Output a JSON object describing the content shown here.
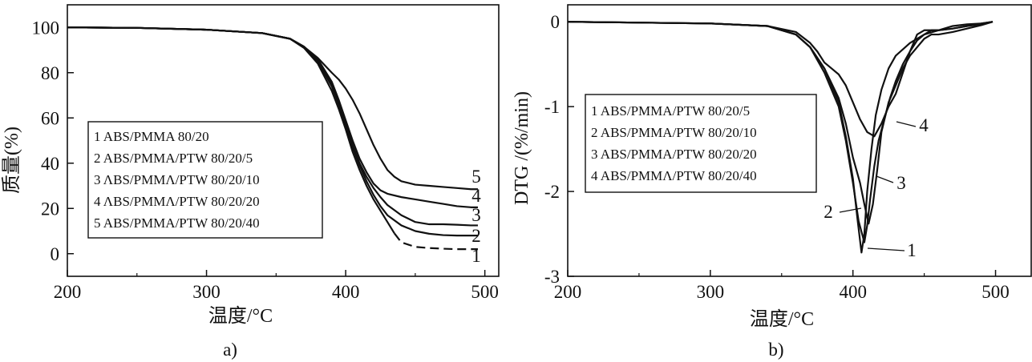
{
  "chart_data": [
    {
      "id": "a",
      "type": "line",
      "panel_label": "a)",
      "xlabel": "温度/°C",
      "ylabel": "质量(%)",
      "xlim": [
        200,
        510
      ],
      "ylim": [
        -10,
        110
      ],
      "x_ticks": [
        200,
        300,
        400,
        500
      ],
      "y_ticks": [
        0,
        20,
        40,
        60,
        80,
        100
      ],
      "x_tick_labels": [
        "200",
        "300",
        "400",
        "500"
      ],
      "y_tick_labels": [
        "0",
        "20",
        "40",
        "60",
        "80",
        "100"
      ],
      "legend": [
        "1 ABS/PMMA 80/20",
        "2 ABS/PMMA/PTW 80/20/5",
        "3 ΛBS/PMMΛ/PTW 80/20/10",
        "4 ΛBS/PMMΛ/PTW 80/20/20",
        "5 ABS/PMMA/PTW 80/20/40"
      ],
      "series": [
        {
          "name": "1",
          "label": "1",
          "dashed_from": 435,
          "x": [
            200,
            250,
            300,
            340,
            360,
            370,
            380,
            390,
            395,
            400,
            405,
            410,
            415,
            420,
            425,
            430,
            435,
            440,
            450,
            460,
            470,
            480,
            490,
            495
          ],
          "y": [
            100,
            99.8,
            99,
            97.5,
            95,
            91,
            84,
            72,
            64,
            55,
            45,
            37,
            30,
            24,
            19,
            14,
            9,
            5,
            3,
            2.5,
            2.2,
            2,
            2,
            2
          ]
        },
        {
          "name": "2",
          "label": "2",
          "x": [
            200,
            250,
            300,
            340,
            360,
            370,
            380,
            390,
            395,
            400,
            405,
            410,
            415,
            420,
            425,
            430,
            440,
            450,
            460,
            470,
            480,
            490,
            495
          ],
          "y": [
            100,
            99.8,
            99,
            97.5,
            95,
            91,
            85,
            74,
            66,
            57,
            47,
            39,
            32,
            26,
            21,
            17,
            12.5,
            10,
            8.8,
            8.2,
            8,
            8,
            8
          ]
        },
        {
          "name": "3",
          "label": "3",
          "x": [
            200,
            250,
            300,
            340,
            360,
            370,
            380,
            390,
            395,
            400,
            405,
            410,
            415,
            420,
            425,
            430,
            440,
            450,
            460,
            470,
            480,
            490,
            495
          ],
          "y": [
            100,
            99.8,
            99,
            97.5,
            95,
            91.5,
            85.5,
            75,
            67,
            58,
            48,
            40,
            34,
            29,
            25,
            21.5,
            17,
            14,
            13,
            13,
            12.8,
            12.5,
            12.5
          ]
        },
        {
          "name": "4",
          "label": "4",
          "x": [
            200,
            250,
            300,
            340,
            360,
            370,
            380,
            390,
            395,
            400,
            405,
            410,
            415,
            420,
            425,
            430,
            440,
            450,
            460,
            470,
            480,
            490,
            495
          ],
          "y": [
            100,
            99.8,
            99,
            97.5,
            95,
            91.5,
            86,
            76,
            68,
            59,
            50,
            42,
            36,
            31,
            28,
            26.5,
            25,
            24,
            23,
            22,
            21,
            20.5,
            20.5
          ]
        },
        {
          "name": "5",
          "label": "5",
          "x": [
            200,
            250,
            300,
            340,
            360,
            370,
            380,
            390,
            395,
            400,
            405,
            410,
            415,
            420,
            425,
            430,
            435,
            440,
            450,
            460,
            470,
            480,
            490,
            495
          ],
          "y": [
            100,
            99.8,
            99,
            97.5,
            95,
            91.5,
            86.5,
            80,
            77,
            73,
            68,
            62,
            55,
            48,
            42,
            37,
            34,
            32,
            30.5,
            30,
            29.5,
            29,
            28.5,
            28.5
          ]
        }
      ]
    },
    {
      "id": "b",
      "type": "line",
      "panel_label": "b)",
      "xlabel": "温度/°C",
      "ylabel": "DTG /(%/min)",
      "xlim": [
        200,
        525
      ],
      "ylim": [
        -3,
        0.2
      ],
      "x_ticks": [
        200,
        300,
        400,
        500
      ],
      "y_ticks": [
        0,
        -1,
        -2,
        -3
      ],
      "x_tick_labels": [
        "200",
        "300",
        "400",
        "500"
      ],
      "y_tick_labels": [
        "0",
        "-1",
        "-2",
        "-3"
      ],
      "legend": [
        "1 ABS/PMMA/PTW 80/20/5",
        "2 ABS/PMMA/PTW 80/20/10",
        "3 ABS/PMMA/PTW 80/20/20",
        "4 ABS/PMMΛ/PTW 80/20/40"
      ],
      "curve_labels": [
        "1",
        "2",
        "3",
        "4"
      ],
      "series": [
        {
          "name": "1",
          "x": [
            200,
            300,
            340,
            360,
            370,
            380,
            390,
            395,
            400,
            403,
            406,
            408,
            410,
            413,
            416,
            420,
            425,
            430,
            440,
            450,
            460,
            470,
            480,
            490,
            498
          ],
          "y": [
            0,
            -0.02,
            -0.05,
            -0.15,
            -0.3,
            -0.55,
            -0.95,
            -1.35,
            -1.85,
            -2.3,
            -2.72,
            -2.5,
            -2.0,
            -1.5,
            -1.1,
            -0.8,
            -0.55,
            -0.4,
            -0.25,
            -0.15,
            -0.1,
            -0.05,
            -0.03,
            -0.02,
            0
          ]
        },
        {
          "name": "2",
          "x": [
            200,
            300,
            340,
            360,
            370,
            380,
            390,
            395,
            400,
            404,
            408,
            410,
            412,
            415,
            418,
            422,
            426,
            430,
            435,
            440,
            445,
            450,
            455,
            460,
            470,
            480,
            490,
            498
          ],
          "y": [
            0,
            -0.02,
            -0.05,
            -0.15,
            -0.3,
            -0.6,
            -1.0,
            -1.4,
            -1.9,
            -2.35,
            -2.6,
            -2.4,
            -2.1,
            -1.7,
            -1.4,
            -1.15,
            -0.9,
            -0.7,
            -0.5,
            -0.35,
            -0.22,
            -0.15,
            -0.1,
            -0.1,
            -0.08,
            -0.05,
            -0.03,
            0
          ]
        },
        {
          "name": "3",
          "x": [
            200,
            300,
            340,
            360,
            370,
            380,
            390,
            395,
            400,
            405,
            408,
            411,
            414,
            417,
            420,
            425,
            430,
            435,
            440,
            445,
            450,
            455,
            460,
            470,
            480,
            490,
            498
          ],
          "y": [
            0,
            -0.02,
            -0.05,
            -0.15,
            -0.3,
            -0.55,
            -0.9,
            -1.2,
            -1.6,
            -1.9,
            -2.15,
            -2.38,
            -2.15,
            -1.75,
            -1.3,
            -0.95,
            -0.75,
            -0.55,
            -0.4,
            -0.3,
            -0.2,
            -0.15,
            -0.15,
            -0.12,
            -0.08,
            -0.04,
            0
          ]
        },
        {
          "name": "4",
          "x": [
            200,
            300,
            340,
            360,
            370,
            375,
            380,
            385,
            390,
            395,
            400,
            405,
            410,
            415,
            420,
            425,
            430,
            435,
            440,
            445,
            450,
            455,
            460,
            470,
            480,
            490,
            498
          ],
          "y": [
            0,
            -0.02,
            -0.05,
            -0.12,
            -0.25,
            -0.35,
            -0.48,
            -0.55,
            -0.62,
            -0.75,
            -0.95,
            -1.15,
            -1.3,
            -1.35,
            -1.2,
            -1.0,
            -0.85,
            -0.6,
            -0.35,
            -0.15,
            -0.1,
            -0.1,
            -0.1,
            -0.08,
            -0.05,
            -0.02,
            0
          ]
        }
      ]
    }
  ]
}
